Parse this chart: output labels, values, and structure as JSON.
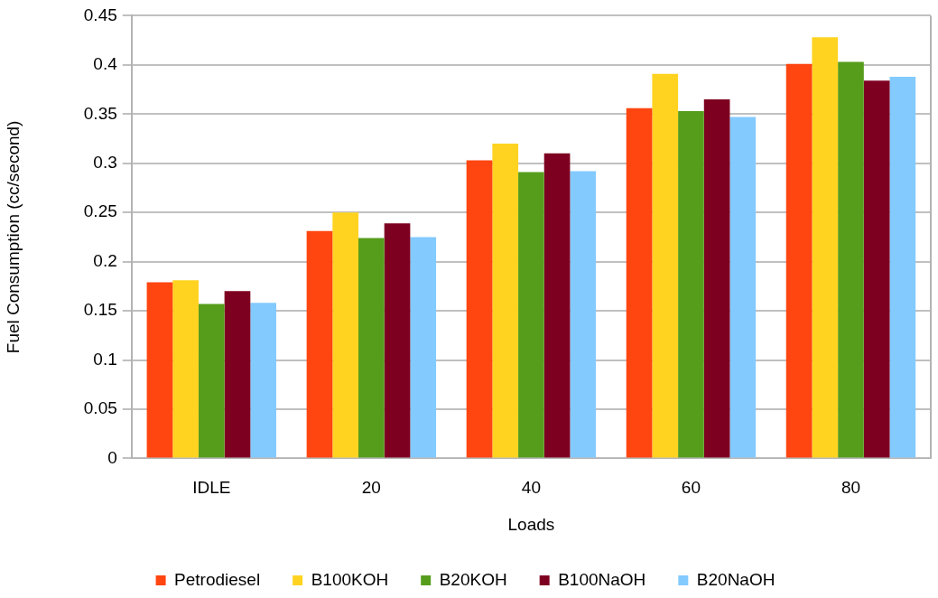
{
  "chart_data": {
    "type": "bar",
    "xlabel": "Loads",
    "ylabel": "Fuel Consumption (cc/second)",
    "categories": [
      "IDLE",
      "20",
      "40",
      "60",
      "80"
    ],
    "series": [
      {
        "name": "Petrodiesel",
        "color": "#ff4510",
        "values": [
          0.179,
          0.231,
          0.303,
          0.356,
          0.401
        ]
      },
      {
        "name": "B100KOH",
        "color": "#ffd320",
        "values": [
          0.181,
          0.25,
          0.32,
          0.391,
          0.428
        ]
      },
      {
        "name": "B20KOH",
        "color": "#579d1c",
        "values": [
          0.157,
          0.224,
          0.291,
          0.353,
          0.403
        ]
      },
      {
        "name": "B100NaOH",
        "color": "#7e0021",
        "values": [
          0.17,
          0.239,
          0.31,
          0.365,
          0.384
        ]
      },
      {
        "name": "B20NaOH",
        "color": "#83caff",
        "values": [
          0.158,
          0.225,
          0.292,
          0.347,
          0.388
        ]
      }
    ],
    "ylim": [
      0,
      0.45
    ],
    "yticks": [
      0,
      0.05,
      0.1,
      0.15,
      0.2,
      0.25,
      0.3,
      0.35,
      0.4,
      0.45
    ],
    "grid": "y",
    "legend": "bottom"
  }
}
